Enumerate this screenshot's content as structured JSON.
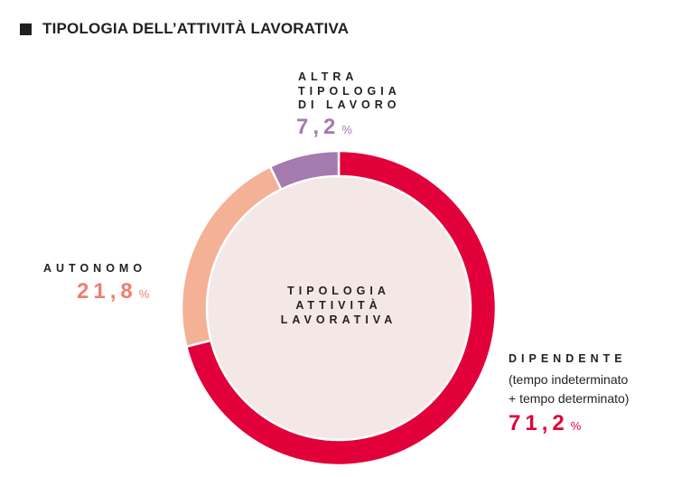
{
  "header": {
    "title": "TIPOLOGIA DELL’ATTIVITÀ LAVORATIVA"
  },
  "center_label": [
    "TIPOLOGIA",
    "ATTIVITÀ",
    "LAVORATIVA"
  ],
  "labels": {
    "altra": {
      "lines": [
        "ALTRA",
        "TIPOLOGIA",
        "DI LAVORO"
      ],
      "value": "7,2",
      "unit": "%"
    },
    "autonomo": {
      "lines": [
        "AUTONOMO"
      ],
      "value": "21,8",
      "unit": "%"
    },
    "dipendente": {
      "lines": [
        "DIPENDENTE"
      ],
      "note": [
        "(tempo indeterminato",
        "+ tempo determinato)"
      ],
      "value": "71,2",
      "unit": "%"
    }
  },
  "colors": {
    "dipendente": "#e2003a",
    "autonomo": "#f4b196",
    "altra": "#a47aaf",
    "inner": "#f3e8e5",
    "text": "#231f20"
  },
  "chart_data": {
    "type": "pie",
    "title": "TIPOLOGIA DELL’ATTIVITÀ LAVORATIVA",
    "center_text": "TIPOLOGIA ATTIVITÀ LAVORATIVA",
    "categories": [
      "DIPENDENTE",
      "AUTONOMO",
      "ALTRA TIPOLOGIA DI LAVORO"
    ],
    "values": [
      71.2,
      21.8,
      7.2
    ],
    "unit": "%",
    "start_angle_deg": 0,
    "direction": "clockwise",
    "colors": [
      "#e2003a",
      "#f4b196",
      "#a47aaf"
    ]
  }
}
